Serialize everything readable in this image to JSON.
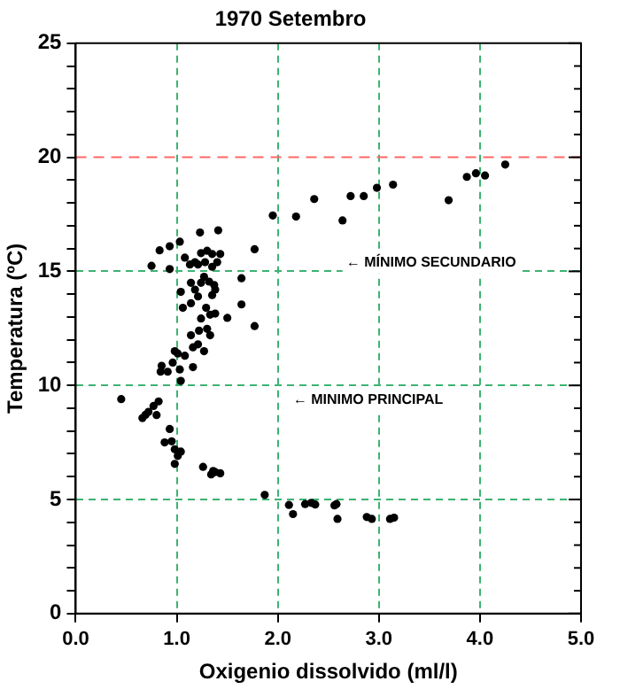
{
  "chart_data": {
    "type": "scatter",
    "title": "1970 Setembro",
    "xlabel": "Oxigenio dissolvido (ml/l)",
    "ylabel": "Temperatura (ºC)",
    "x": [
      0.75,
      0.83,
      0.93,
      1.03,
      0.93,
      1.23,
      1.41,
      1.08,
      1.13,
      1.18,
      1.24,
      1.3,
      1.35,
      1.4,
      1.43,
      1.28,
      1.21,
      1.35,
      1.77,
      1.64,
      1.64,
      1.77,
      1.5,
      1.38,
      1.35,
      1.29,
      1.18,
      1.14,
      1.06,
      1.04,
      1.27,
      1.32,
      1.14,
      1.24,
      1.37,
      1.21,
      1.38,
      1.33,
      1.24,
      1.3,
      1.22,
      1.14,
      1.16,
      1.21,
      1.27,
      1.33,
      1.08,
      1.01,
      0.98,
      0.96,
      1.03,
      1.16,
      0.85,
      0.84,
      0.91,
      1.04,
      0.45,
      0.66,
      0.72,
      0.77,
      0.82,
      0.8,
      0.69,
      0.93,
      0.88,
      0.95,
      0.98,
      1.01,
      1.04,
      0.98,
      1.26,
      1.34,
      1.38,
      1.43,
      1.36,
      1.87,
      2.11,
      2.15,
      2.27,
      2.33,
      2.37,
      2.56,
      2.58,
      2.59,
      2.88,
      2.93,
      3.11,
      3.15,
      1.95,
      2.18,
      2.36,
      2.72,
      2.64,
      2.85,
      2.98,
      3.14,
      3.69,
      3.87,
      3.96,
      4.05,
      4.25
    ],
    "values": [
      15.24,
      15.92,
      16.1,
      16.3,
      15.1,
      16.7,
      16.8,
      15.6,
      15.3,
      15.4,
      15.8,
      15.9,
      15.76,
      15.4,
      15.76,
      15.4,
      15.3,
      15.2,
      15.97,
      14.7,
      13.55,
      12.6,
      12.96,
      14.2,
      13.96,
      13.4,
      14.2,
      13.6,
      13.4,
      14.1,
      14.76,
      14.55,
      14.5,
      14.5,
      14.4,
      13.9,
      13.15,
      13.1,
      12.93,
      12.48,
      12.4,
      12.2,
      11.67,
      11.8,
      11.5,
      12.2,
      11.3,
      11.4,
      11.5,
      11.0,
      10.7,
      10.8,
      10.86,
      10.6,
      10.6,
      10.2,
      9.4,
      8.57,
      8.84,
      9.1,
      9.3,
      8.7,
      8.71,
      8.09,
      7.5,
      7.55,
      7.2,
      6.91,
      7.1,
      6.56,
      6.43,
      6.1,
      6.2,
      6.15,
      6.25,
      5.2,
      4.76,
      4.36,
      4.8,
      4.85,
      4.78,
      4.74,
      4.8,
      4.15,
      4.23,
      4.15,
      4.15,
      4.2,
      17.45,
      17.4,
      18.17,
      18.3,
      17.23,
      18.3,
      18.66,
      18.8,
      18.12,
      19.14,
      19.3,
      19.2,
      19.68
    ],
    "color": "#000000",
    "marker": "circle",
    "xlim": [
      0,
      5
    ],
    "xticks": [
      {
        "value": 0,
        "label": "0.0"
      },
      {
        "value": 1,
        "label": "1.0"
      },
      {
        "value": 2,
        "label": "2.0"
      },
      {
        "value": 3,
        "label": "3.0"
      },
      {
        "value": 4,
        "label": "4.0"
      },
      {
        "value": 5,
        "label": "5.0"
      }
    ],
    "ylim": [
      0,
      25
    ],
    "yticks": [
      0,
      {
        "value": 1,
        "label": null
      },
      {
        "value": 2,
        "label": null
      },
      {
        "value": 3,
        "label": null
      },
      {
        "value": 4,
        "label": null
      },
      5,
      {
        "value": 6,
        "label": null
      },
      {
        "value": 7,
        "label": null
      },
      {
        "value": 8,
        "label": null
      },
      {
        "value": 9,
        "label": null
      },
      10,
      {
        "value": 11,
        "label": null
      },
      {
        "value": 12,
        "label": null
      },
      {
        "value": 13,
        "label": null
      },
      {
        "value": 14,
        "label": null
      },
      15,
      {
        "value": 16,
        "label": null
      },
      {
        "value": 17,
        "label": null
      },
      {
        "value": 18,
        "label": null
      },
      {
        "value": 19,
        "label": null
      },
      20,
      {
        "value": 21,
        "label": null
      },
      {
        "value": 22,
        "label": null
      },
      {
        "value": 23,
        "label": null
      },
      {
        "value": 24,
        "label": null
      },
      25
    ],
    "grid": true,
    "ref_lines": [
      {
        "axis": "y",
        "value": 20,
        "color": "#ff6666",
        "line_style": "dashed"
      }
    ],
    "annotations": [
      "← MÍNIMO SECUNDARIO",
      "← MINIMO PRINCIPAL"
    ],
    "legend": false
  }
}
